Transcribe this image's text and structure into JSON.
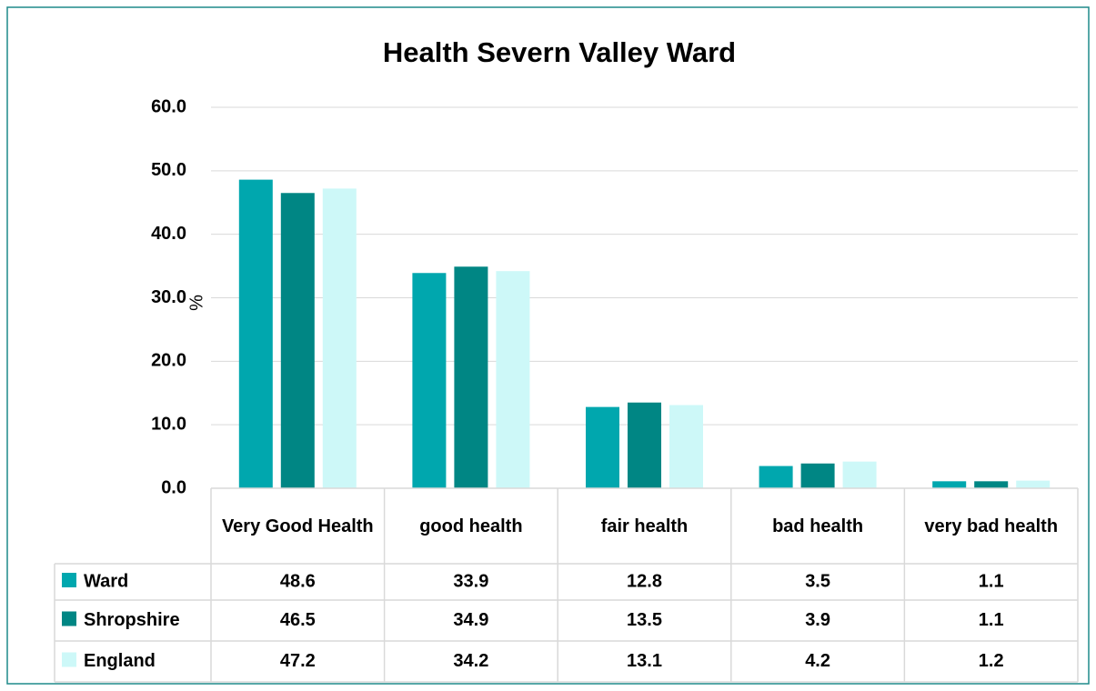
{
  "chart_data": {
    "type": "bar",
    "title": "Health Severn Valley Ward",
    "y_label": "%",
    "categories": [
      "Very Good Health",
      "good health",
      "fair health",
      "bad health",
      "very bad health"
    ],
    "series": [
      {
        "name": "Ward",
        "color": "#00a7ae",
        "values": [
          48.6,
          33.9,
          12.8,
          3.5,
          1.1
        ]
      },
      {
        "name": "Shropshire",
        "color": "#008684",
        "values": [
          46.5,
          34.9,
          13.5,
          3.9,
          1.1
        ]
      },
      {
        "name": "England",
        "color": "#cdf8f8",
        "values": [
          47.2,
          34.2,
          13.1,
          4.2,
          1.2
        ]
      }
    ],
    "ylim": [
      0,
      60
    ],
    "yticks": [
      {
        "value": 0,
        "label": "0.0"
      },
      {
        "value": 10,
        "label": "10.0"
      },
      {
        "value": 20,
        "label": "20.0"
      },
      {
        "value": 30,
        "label": "30.0"
      },
      {
        "value": 40,
        "label": "40.0"
      },
      {
        "value": 50,
        "label": "50.0"
      },
      {
        "value": 60,
        "label": "60.0"
      }
    ],
    "grid": true,
    "data_table": true
  }
}
